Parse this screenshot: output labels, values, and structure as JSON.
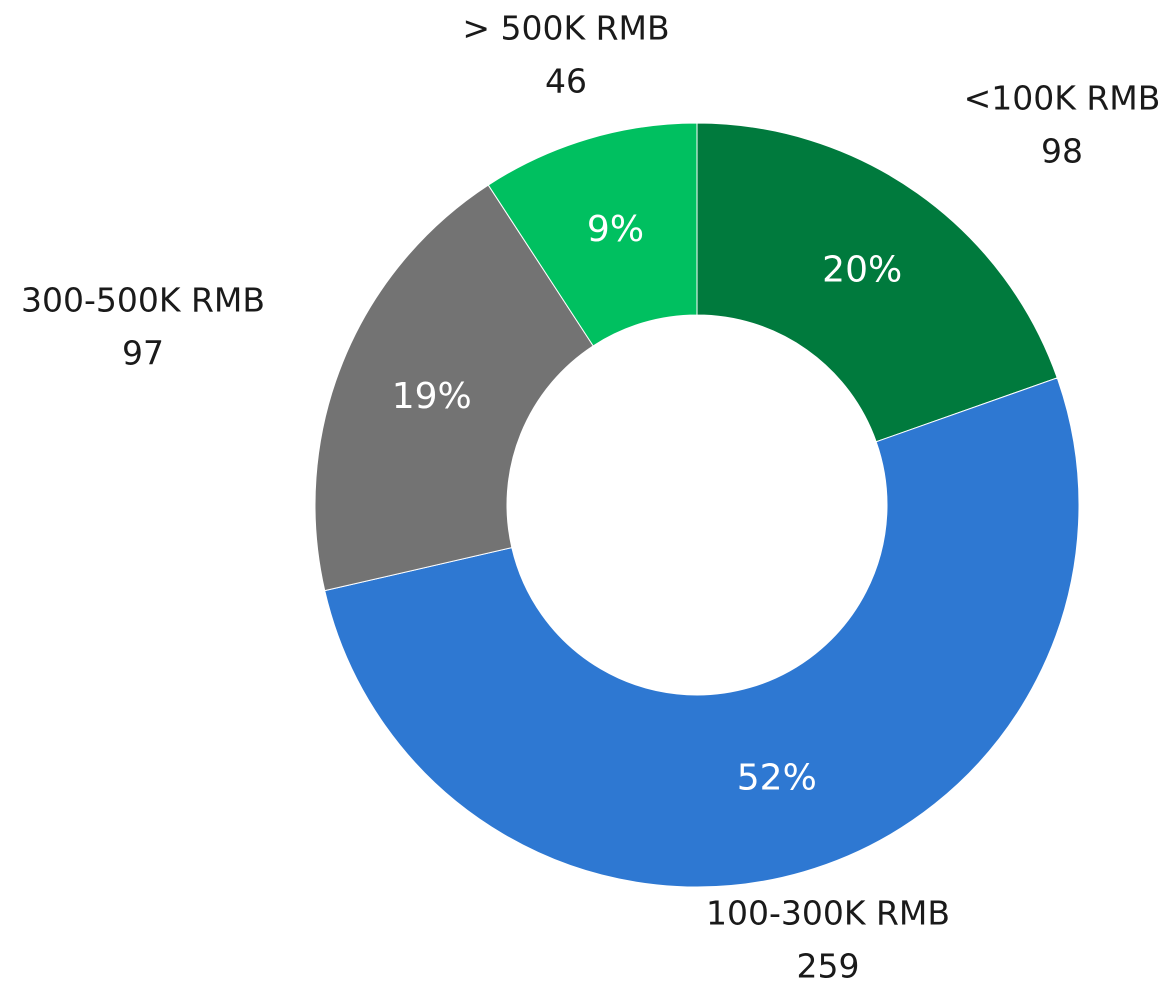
{
  "chart_data": {
    "type": "donut",
    "categories": [
      "<100K RMB",
      "100-300K RMB",
      "300-500K RMB",
      "> 500K RMB"
    ],
    "values": [
      98,
      259,
      97,
      46
    ],
    "percent_labels": [
      "20%",
      "52%",
      "19%",
      "9%"
    ],
    "colors": [
      "#007a3d",
      "#2e78d2",
      "#737373",
      "#00c060"
    ]
  }
}
